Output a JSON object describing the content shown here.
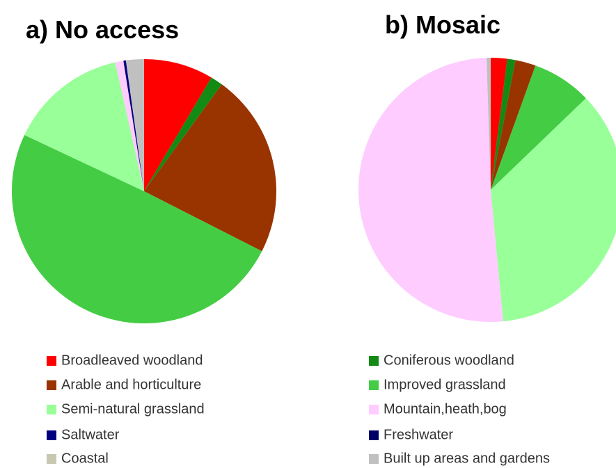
{
  "chart_data": [
    {
      "type": "pie",
      "title": "a) No access",
      "categories": [
        "Broadleaved woodland",
        "Coniferous woodland",
        "Arable and horticulture",
        "Improved grassland",
        "Semi-natural grassland",
        "Mountain,heath,bog",
        "Saltwater",
        "Freshwater",
        "Coastal",
        "Built up areas and gardens"
      ],
      "values": [
        8.5,
        1.5,
        22.5,
        49.5,
        14.5,
        1,
        0.3,
        0,
        0,
        2.2
      ],
      "colors": [
        "#ff0000",
        "#138a13",
        "#993300",
        "#44cc44",
        "#99ff99",
        "#ffccff",
        "#000080",
        "#000066",
        "#c8c8b0",
        "#c0c0c0"
      ]
    },
    {
      "type": "pie",
      "title": "b) Mosaic",
      "categories": [
        "Broadleaved woodland",
        "Coniferous woodland",
        "Arable and horticulture",
        "Improved grassland",
        "Semi-natural grassland",
        "Mountain,heath,bog",
        "Saltwater",
        "Freshwater",
        "Coastal",
        "Built up areas and gardens"
      ],
      "values": [
        2,
        1,
        2.5,
        7.3,
        35.7,
        51,
        0,
        0,
        0,
        0.5
      ],
      "colors": [
        "#ff0000",
        "#138a13",
        "#993300",
        "#44cc44",
        "#99ff99",
        "#ffccff",
        "#000080",
        "#000066",
        "#c8c8b0",
        "#c0c0c0"
      ]
    }
  ]
}
